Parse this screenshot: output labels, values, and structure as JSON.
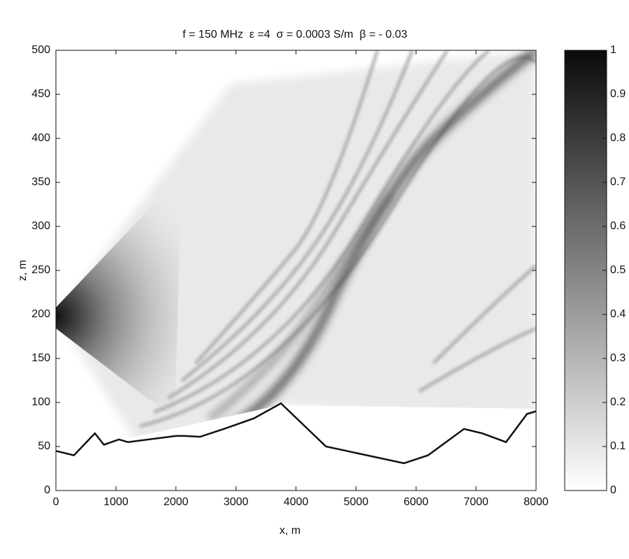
{
  "chart_data": {
    "type": "heatmap",
    "title": "f = 150 MHz  ε =4  σ = 0.0003 S/m  β = - 0.03",
    "xlabel": "x, m",
    "ylabel": "z, m",
    "xlim": [
      0,
      8000
    ],
    "ylim": [
      0,
      500
    ],
    "xticks": [
      0,
      1000,
      2000,
      3000,
      4000,
      5000,
      6000,
      7000,
      8000
    ],
    "yticks": [
      0,
      50,
      100,
      150,
      200,
      250,
      300,
      350,
      400,
      450,
      500
    ],
    "colorbar": {
      "lim": [
        0,
        1
      ],
      "ticks": [
        0,
        0.1,
        0.2,
        0.3,
        0.4,
        0.5,
        0.6,
        0.7,
        0.8,
        0.9,
        1
      ]
    },
    "terrain": {
      "color": "#111111",
      "x": [
        0,
        300,
        650,
        800,
        1050,
        1200,
        2000,
        2150,
        2400,
        2800,
        3300,
        3750,
        4500,
        5800,
        6200,
        6800,
        7100,
        7500,
        7850,
        8000
      ],
      "values": [
        45,
        40,
        65,
        52,
        58,
        55,
        62,
        62,
        61,
        70,
        82,
        99,
        50,
        31,
        40,
        70,
        65,
        55,
        87,
        90
      ]
    }
  }
}
